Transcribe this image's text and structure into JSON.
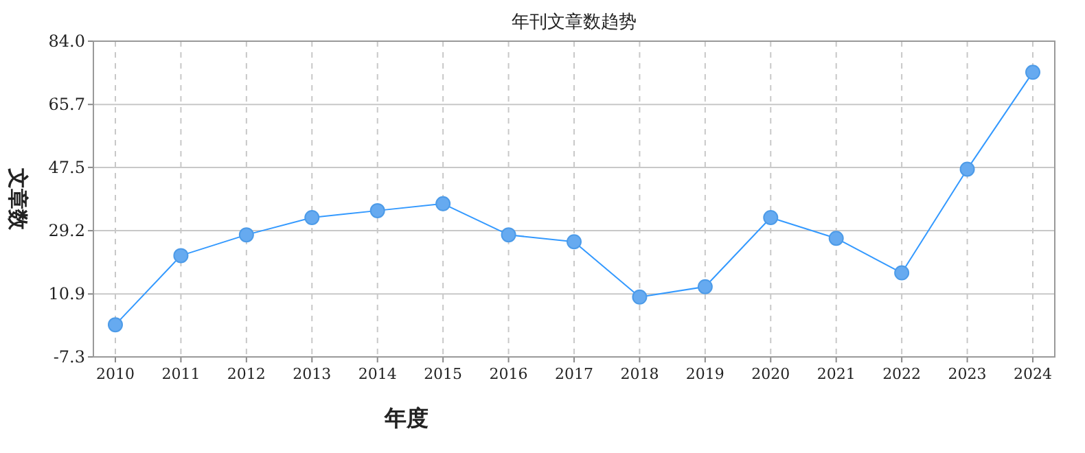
{
  "chart_data": {
    "type": "line",
    "title": "年刊文章数趋势",
    "xlabel": "年度",
    "ylabel": "文章数",
    "categories": [
      "2010",
      "2011",
      "2012",
      "2013",
      "2014",
      "2015",
      "2016",
      "2017",
      "2018",
      "2019",
      "2020",
      "2021",
      "2022",
      "2023",
      "2024"
    ],
    "series": [
      {
        "color": "#3399ff",
        "values": [
          2,
          22,
          28,
          33,
          35,
          37,
          28,
          26,
          10,
          13,
          33,
          27,
          17,
          47,
          75
        ]
      }
    ],
    "ylim": [
      -7.3,
      84
    ],
    "yticks": [
      -7.3,
      10.9,
      29.2,
      47.5,
      65.7,
      {
        "value": 84,
        "label": "84.0"
      }
    ],
    "grid": true,
    "marker": "circle",
    "line_style": "solid"
  }
}
